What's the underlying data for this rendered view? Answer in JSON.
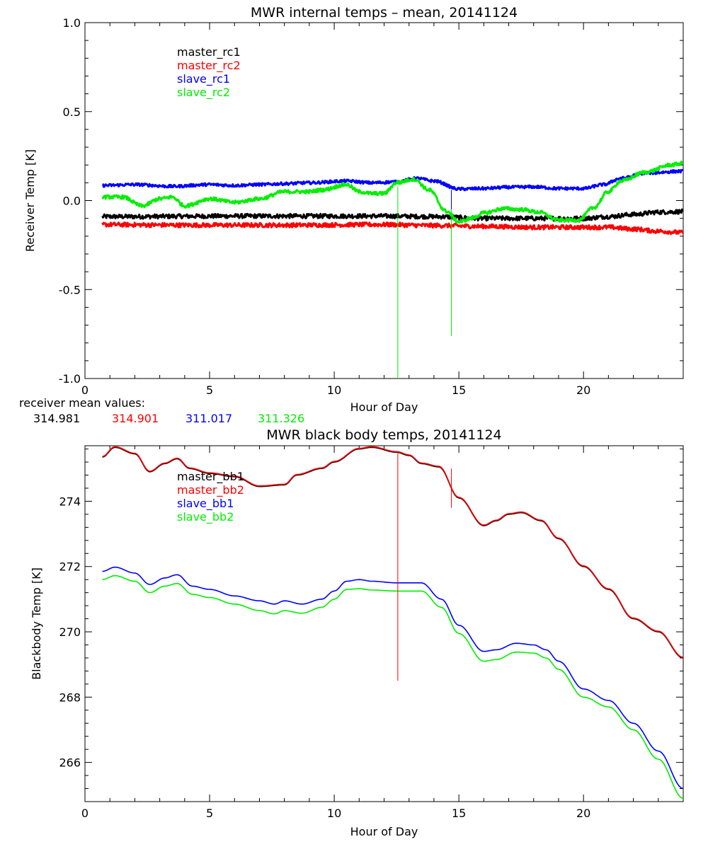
{
  "chart_data": [
    {
      "type": "line",
      "title": "MWR internal temps – mean, 20141124",
      "xlabel": "Hour of Day",
      "ylabel": "Receiver Temp [K]",
      "xlim": [
        0,
        24
      ],
      "ylim": [
        -1.0,
        1.0
      ],
      "x_ticks": [
        0,
        5,
        10,
        15,
        20
      ],
      "y_ticks": [
        -1.0,
        -0.5,
        0.0,
        0.5,
        1.0
      ],
      "y_tick_labels": [
        "-1.0",
        "-0.5",
        "0.0",
        "0.5",
        "1.0"
      ],
      "legend_placement": "top-left",
      "series": [
        {
          "name": "master_rc1",
          "color": "#000000",
          "noise": 0.012,
          "points": [
            [
              0.7,
              -0.09
            ],
            [
              2,
              -0.09
            ],
            [
              4,
              -0.088
            ],
            [
              6,
              -0.087
            ],
            [
              8,
              -0.087
            ],
            [
              10,
              -0.087
            ],
            [
              12,
              -0.087
            ],
            [
              14,
              -0.09
            ],
            [
              16,
              -0.1
            ],
            [
              18,
              -0.1
            ],
            [
              20,
              -0.1
            ],
            [
              21,
              -0.09
            ],
            [
              22,
              -0.078
            ],
            [
              23,
              -0.065
            ],
            [
              24,
              -0.062
            ]
          ]
        },
        {
          "name": "master_rc2",
          "color": "#ff0000",
          "noise": 0.012,
          "points": [
            [
              0.7,
              -0.135
            ],
            [
              4,
              -0.138
            ],
            [
              8,
              -0.138
            ],
            [
              12,
              -0.135
            ],
            [
              14,
              -0.14
            ],
            [
              16,
              -0.145
            ],
            [
              18,
              -0.15
            ],
            [
              20,
              -0.15
            ],
            [
              21,
              -0.15
            ],
            [
              22,
              -0.16
            ],
            [
              23,
              -0.172
            ],
            [
              24,
              -0.18
            ]
          ]
        },
        {
          "name": "slave_rc1",
          "color": "#0000ff",
          "noise": 0.008,
          "points": [
            [
              0.7,
              0.085
            ],
            [
              2,
              0.09
            ],
            [
              3.5,
              0.08
            ],
            [
              5,
              0.09
            ],
            [
              6,
              0.085
            ],
            [
              7,
              0.09
            ],
            [
              8,
              0.095
            ],
            [
              9,
              0.1
            ],
            [
              10.5,
              0.11
            ],
            [
              11.5,
              0.1
            ],
            [
              12.5,
              0.105
            ],
            [
              13.3,
              0.125
            ],
            [
              14,
              0.11
            ],
            [
              15,
              0.065
            ],
            [
              16,
              0.068
            ],
            [
              17,
              0.075
            ],
            [
              18,
              0.077
            ],
            [
              19,
              0.068
            ],
            [
              20,
              0.068
            ],
            [
              20.8,
              0.09
            ],
            [
              21.5,
              0.125
            ],
            [
              22.5,
              0.155
            ],
            [
              24,
              0.165
            ]
          ]
        },
        {
          "name": "slave_rc2",
          "color": "#00ee00",
          "noise": 0.01,
          "points": [
            [
              0.7,
              0.02
            ],
            [
              1.5,
              0.02
            ],
            [
              2.3,
              -0.03
            ],
            [
              3,
              0.01
            ],
            [
              3.5,
              0.02
            ],
            [
              4,
              -0.03
            ],
            [
              5,
              0.01
            ],
            [
              6,
              -0.01
            ],
            [
              7,
              0.01
            ],
            [
              8,
              0.05
            ],
            [
              9,
              0.05
            ],
            [
              9.5,
              0.06
            ],
            [
              10.5,
              0.09
            ],
            [
              11,
              0.05
            ],
            [
              11.5,
              0.04
            ],
            [
              12,
              0.04
            ],
            [
              12.5,
              0.1
            ],
            [
              13.2,
              0.12
            ],
            [
              13.8,
              0.06
            ],
            [
              14.5,
              -0.06
            ],
            [
              15,
              -0.12
            ],
            [
              15.5,
              -0.1
            ],
            [
              16,
              -0.07
            ],
            [
              16.8,
              -0.045
            ],
            [
              17.5,
              -0.05
            ],
            [
              18.2,
              -0.065
            ],
            [
              19,
              -0.11
            ],
            [
              19.8,
              -0.11
            ],
            [
              20.4,
              -0.04
            ],
            [
              21,
              0.05
            ],
            [
              21.5,
              0.11
            ],
            [
              22.5,
              0.16
            ],
            [
              23.5,
              0.2
            ],
            [
              24,
              0.21
            ]
          ]
        }
      ],
      "spikes": [
        {
          "x": 12.55,
          "y_from": 0.08,
          "y_to": -1.0,
          "color": "#00ee00"
        },
        {
          "x": 14.7,
          "y_from": 0.06,
          "y_to": -0.76,
          "color": "#00ee00"
        },
        {
          "x": 14.7,
          "y_from": 0.06,
          "y_to": -0.05,
          "color": "#0000ff"
        }
      ]
    },
    {
      "type": "line",
      "title": "MWR black body temps, 20141124",
      "xlabel": "Hour of Day",
      "ylabel": "Blackbody Temp [K]",
      "xlim": [
        0,
        24
      ],
      "ylim": [
        264.8,
        275.7
      ],
      "x_ticks": [
        0,
        5,
        10,
        15,
        20
      ],
      "y_ticks": [
        266,
        268,
        270,
        272,
        274
      ],
      "y_tick_labels": [
        "266",
        "268",
        "270",
        "272",
        "274"
      ],
      "legend_placement": "top-left",
      "series": [
        {
          "name": "master_bb1",
          "color": "#000000",
          "offset": 0,
          "points": [
            [
              0.7,
              275.35
            ],
            [
              1.2,
              275.65
            ],
            [
              2,
              275.45
            ],
            [
              2.6,
              274.9
            ],
            [
              3.2,
              275.15
            ],
            [
              3.7,
              275.3
            ],
            [
              4.2,
              275.0
            ],
            [
              5,
              274.85
            ],
            [
              6,
              274.75
            ],
            [
              7,
              274.45
            ],
            [
              8,
              274.5
            ],
            [
              8.5,
              274.8
            ],
            [
              9.5,
              275.0
            ],
            [
              10,
              275.2
            ],
            [
              11,
              275.6
            ],
            [
              11.5,
              275.65
            ],
            [
              12.5,
              275.5
            ],
            [
              13,
              275.4
            ],
            [
              13.5,
              275.15
            ],
            [
              14.2,
              275.05
            ],
            [
              15,
              274.1
            ],
            [
              16,
              273.25
            ],
            [
              16.5,
              273.4
            ],
            [
              17,
              273.6
            ],
            [
              17.5,
              273.65
            ],
            [
              18.3,
              273.4
            ],
            [
              19,
              272.85
            ],
            [
              20,
              272.0
            ],
            [
              21,
              271.3
            ],
            [
              22,
              270.4
            ],
            [
              23,
              270.0
            ],
            [
              24,
              269.2
            ]
          ]
        },
        {
          "name": "master_bb2",
          "color": "#ff0000",
          "offset": 0.02,
          "points": [
            [
              0.7,
              275.35
            ],
            [
              1.2,
              275.65
            ],
            [
              2,
              275.45
            ],
            [
              2.6,
              274.9
            ],
            [
              3.2,
              275.15
            ],
            [
              3.7,
              275.3
            ],
            [
              4.2,
              275.0
            ],
            [
              5,
              274.85
            ],
            [
              6,
              274.75
            ],
            [
              7,
              274.45
            ],
            [
              8,
              274.5
            ],
            [
              8.5,
              274.8
            ],
            [
              9.5,
              275.0
            ],
            [
              10,
              275.2
            ],
            [
              11,
              275.6
            ],
            [
              11.5,
              275.65
            ],
            [
              12.5,
              275.5
            ],
            [
              13,
              275.4
            ],
            [
              13.5,
              275.15
            ],
            [
              14.2,
              275.05
            ],
            [
              15,
              274.1
            ],
            [
              16,
              273.25
            ],
            [
              16.5,
              273.4
            ],
            [
              17,
              273.6
            ],
            [
              17.5,
              273.65
            ],
            [
              18.3,
              273.4
            ],
            [
              19,
              272.85
            ],
            [
              20,
              272.0
            ],
            [
              21,
              271.3
            ],
            [
              22,
              270.4
            ],
            [
              23,
              270.0
            ],
            [
              24,
              269.2
            ]
          ]
        },
        {
          "name": "slave_bb1",
          "color": "#0000ff",
          "offset": 0,
          "points": [
            [
              0.7,
              271.85
            ],
            [
              1.2,
              271.98
            ],
            [
              2,
              271.8
            ],
            [
              2.6,
              271.45
            ],
            [
              3.2,
              271.65
            ],
            [
              3.7,
              271.75
            ],
            [
              4.3,
              271.4
            ],
            [
              5,
              271.3
            ],
            [
              6,
              271.1
            ],
            [
              7,
              270.95
            ],
            [
              7.6,
              270.85
            ],
            [
              8,
              270.95
            ],
            [
              8.7,
              270.85
            ],
            [
              9.5,
              271.0
            ],
            [
              10,
              271.25
            ],
            [
              10.5,
              271.55
            ],
            [
              11,
              271.6
            ],
            [
              11.5,
              271.55
            ],
            [
              12.5,
              271.5
            ],
            [
              13.5,
              271.5
            ],
            [
              14.3,
              271.0
            ],
            [
              15,
              270.2
            ],
            [
              16,
              269.4
            ],
            [
              16.5,
              269.45
            ],
            [
              17.3,
              269.65
            ],
            [
              18,
              269.6
            ],
            [
              18.5,
              269.45
            ],
            [
              19,
              269.1
            ],
            [
              20,
              268.25
            ],
            [
              21,
              267.9
            ],
            [
              22,
              267.2
            ],
            [
              23,
              266.35
            ],
            [
              24,
              265.2
            ]
          ]
        },
        {
          "name": "slave_bb2",
          "color": "#00ee00",
          "offset": 0,
          "points": [
            [
              0.7,
              271.6
            ],
            [
              1.2,
              271.72
            ],
            [
              2,
              271.55
            ],
            [
              2.6,
              271.2
            ],
            [
              3.2,
              271.4
            ],
            [
              3.7,
              271.48
            ],
            [
              4.3,
              271.15
            ],
            [
              5,
              271.05
            ],
            [
              6,
              270.85
            ],
            [
              7,
              270.65
            ],
            [
              7.6,
              270.55
            ],
            [
              8,
              270.65
            ],
            [
              8.7,
              270.57
            ],
            [
              9.5,
              270.75
            ],
            [
              10,
              271.0
            ],
            [
              10.5,
              271.3
            ],
            [
              11,
              271.32
            ],
            [
              11.5,
              271.28
            ],
            [
              12.5,
              271.25
            ],
            [
              13.5,
              271.25
            ],
            [
              14.3,
              270.75
            ],
            [
              15,
              269.95
            ],
            [
              16,
              269.1
            ],
            [
              16.5,
              269.15
            ],
            [
              17.3,
              269.38
            ],
            [
              18,
              269.35
            ],
            [
              18.5,
              269.2
            ],
            [
              19,
              268.85
            ],
            [
              20,
              268.0
            ],
            [
              21,
              267.7
            ],
            [
              22,
              267.0
            ],
            [
              23,
              266.1
            ],
            [
              24,
              264.9
            ]
          ]
        }
      ],
      "spikes": [
        {
          "x": 12.55,
          "y_from": 275.5,
          "y_to": 268.5,
          "color": "#ff0000"
        },
        {
          "x": 14.7,
          "y_from": 275.0,
          "y_to": 273.8,
          "color": "#ff0000"
        }
      ]
    }
  ],
  "receiver_mean": {
    "label": "receiver mean values:",
    "values": [
      {
        "text": "314.981",
        "color": "#000000"
      },
      {
        "text": "314.901",
        "color": "#ff0000"
      },
      {
        "text": "311.017",
        "color": "#0000ff"
      },
      {
        "text": "311.326",
        "color": "#00ee00"
      }
    ]
  }
}
